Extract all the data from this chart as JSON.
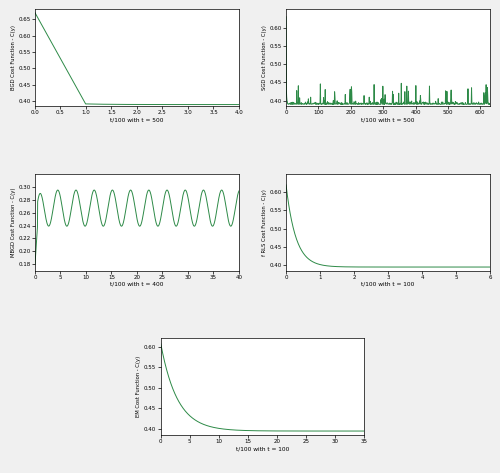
{
  "line_color": "#2d8a47",
  "background": "#ffffff",
  "fig_bg": "#f0f0f0",
  "bgd_ylabel": "BGD Cost Function - C(y)",
  "bgd_xlabel": "t/100 with t = 500",
  "bgd_xlim": [
    0,
    4.0
  ],
  "bgd_ylim": [
    0.385,
    0.68
  ],
  "bgd_yticks": [
    0.4,
    0.45,
    0.5,
    0.55,
    0.6,
    0.65
  ],
  "bgd_xticks": [
    0.0,
    0.5,
    1.0,
    1.5,
    2.0,
    2.5,
    3.0,
    3.5,
    4.0
  ],
  "sgd_ylabel": "SGD Cost Function - C(y)",
  "sgd_xlabel": "t/100 with t = 500",
  "sgd_xlim": [
    0,
    630
  ],
  "sgd_ylim": [
    0.385,
    0.65
  ],
  "sgd_yticks": [
    0.4,
    0.45,
    0.5,
    0.55,
    0.6
  ],
  "sgd_xticks": [
    0,
    100,
    200,
    300,
    400,
    500,
    600
  ],
  "mbgd_ylabel": "MBGD Cost Function - C(y)",
  "mbgd_xlabel": "t/100 with t = 400",
  "mbgd_xlim": [
    0,
    40
  ],
  "mbgd_ylim": [
    0.17,
    0.32
  ],
  "mbgd_yticks": [
    0.18,
    0.2,
    0.22,
    0.24,
    0.26,
    0.28,
    0.3
  ],
  "mbgd_xticks": [
    0,
    5,
    10,
    15,
    20,
    25,
    30,
    35,
    40
  ],
  "fls_ylabel": "f RLS Cost Function - C(y)",
  "fls_xlabel": "t/100 with t = 100",
  "fls_xlim": [
    0,
    6
  ],
  "fls_ylim": [
    0.385,
    0.65
  ],
  "fls_yticks": [
    0.4,
    0.45,
    0.5,
    0.55,
    0.6
  ],
  "fls_xticks": [
    0,
    1,
    2,
    3,
    4,
    5,
    6
  ],
  "em_ylabel": "EM Cost Function - C(y)",
  "em_xlabel": "t/100 with t = 100",
  "em_xlim": [
    0,
    35
  ],
  "em_ylim": [
    0.385,
    0.62
  ],
  "em_yticks": [
    0.4,
    0.45,
    0.5,
    0.55,
    0.6
  ],
  "em_xticks": [
    0,
    5,
    10,
    15,
    20,
    25,
    30,
    35
  ]
}
